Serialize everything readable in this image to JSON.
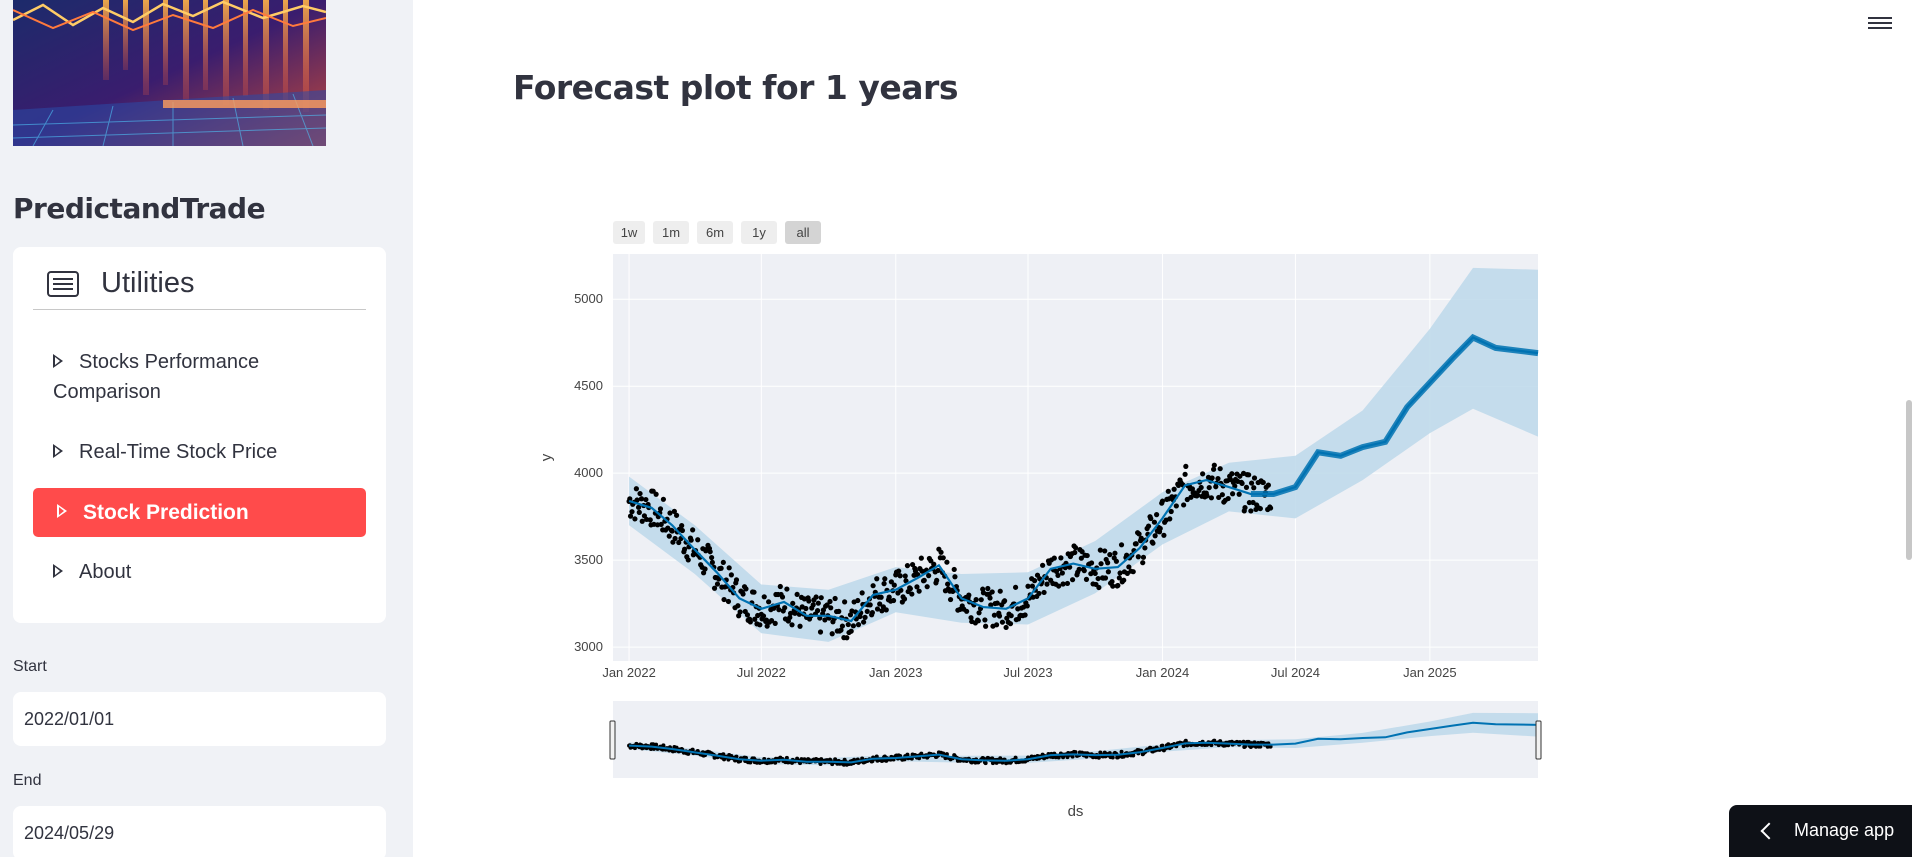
{
  "sidebar": {
    "app_title": "PredictandTrade",
    "menu": {
      "title": "Utilities",
      "items": [
        {
          "label": "Stocks Performance Comparison",
          "line1": "Stocks Performance",
          "line2": "Comparison",
          "active": false
        },
        {
          "label": "Real-Time Stock Price",
          "active": false
        },
        {
          "label": "Stock Prediction",
          "active": true
        },
        {
          "label": "About",
          "active": false
        }
      ]
    },
    "start": {
      "label": "Start",
      "value": "2022/01/01"
    },
    "end": {
      "label": "End",
      "value": "2024/05/29"
    }
  },
  "main": {
    "title": "Forecast plot for 1 years",
    "range_buttons": [
      "1w",
      "1m",
      "6m",
      "1y",
      "all"
    ],
    "range_selected": "all"
  },
  "manage_app": {
    "label": "Manage app"
  },
  "colors": {
    "accent": "#ff4b4b",
    "forecast_line": "#0072b2",
    "uncertainty_band": "#bcd8ea",
    "observed_points": "#000000",
    "plot_bg": "#eef0f5"
  },
  "chart_data": {
    "type": "line",
    "title": "",
    "xlabel": "ds",
    "ylabel": "y",
    "x_ticks": [
      "Jan 2022",
      "Jul 2022",
      "Jan 2023",
      "Jul 2023",
      "Jan 2024",
      "Jul 2024",
      "Jan 2025"
    ],
    "y_ticks": [
      3000,
      3500,
      4000,
      4500,
      5000
    ],
    "xlim": [
      "2021-12-10",
      "2025-05-29"
    ],
    "ylim": [
      2920,
      5260
    ],
    "grid": true,
    "rangeslider": true,
    "series": [
      {
        "type": "line",
        "x": [
          "2022-01-01",
          "2022-02-01",
          "2022-03-01",
          "2022-04-01",
          "2022-05-01",
          "2022-06-01",
          "2022-07-01",
          "2022-08-01",
          "2022-09-01",
          "2022-10-01",
          "2022-11-01",
          "2022-12-01",
          "2023-01-01",
          "2023-02-01",
          "2023-03-01",
          "2023-04-01",
          "2023-05-01",
          "2023-06-01",
          "2023-07-01",
          "2023-08-01",
          "2023-09-01",
          "2023-10-01",
          "2023-11-01",
          "2023-12-01",
          "2024-01-01",
          "2024-02-01",
          "2024-03-01",
          "2024-04-01",
          "2024-05-01",
          "2024-06-01",
          "2024-07-01",
          "2024-08-01",
          "2024-09-01",
          "2024-10-01",
          "2024-11-01",
          "2024-12-01",
          "2025-01-01",
          "2025-02-01",
          "2025-03-01",
          "2025-04-01",
          "2025-05-29"
        ],
        "values": [
          3840,
          3800,
          3700,
          3560,
          3430,
          3280,
          3220,
          3260,
          3180,
          3180,
          3150,
          3300,
          3330,
          3400,
          3470,
          3280,
          3230,
          3220,
          3280,
          3450,
          3480,
          3450,
          3460,
          3570,
          3740,
          3930,
          3960,
          3920,
          3880,
          3880,
          3920,
          4120,
          4100,
          4150,
          4180,
          4380,
          4520,
          4660,
          4780,
          4720,
          4690
        ]
      },
      {
        "type": "band",
        "x": [
          "2022-01-01",
          "2022-04-01",
          "2022-07-01",
          "2022-10-01",
          "2023-01-01",
          "2023-04-01",
          "2023-07-01",
          "2023-10-01",
          "2024-01-01",
          "2024-04-01",
          "2024-07-01",
          "2024-10-01",
          "2025-01-01",
          "2025-03-01",
          "2025-05-29"
        ],
        "lower": [
          3700,
          3420,
          3080,
          3030,
          3200,
          3140,
          3130,
          3310,
          3590,
          3780,
          3740,
          3960,
          4230,
          4370,
          4210
        ],
        "upper": [
          3980,
          3700,
          3360,
          3330,
          3460,
          3420,
          3430,
          3610,
          3890,
          4060,
          4100,
          4360,
          4830,
          5180,
          5170
        ]
      },
      {
        "type": "scatter",
        "name": "",
        "x_range": [
          "2022-01-01",
          "2024-05-29"
        ],
        "note_points_follow_line": true
      }
    ]
  }
}
